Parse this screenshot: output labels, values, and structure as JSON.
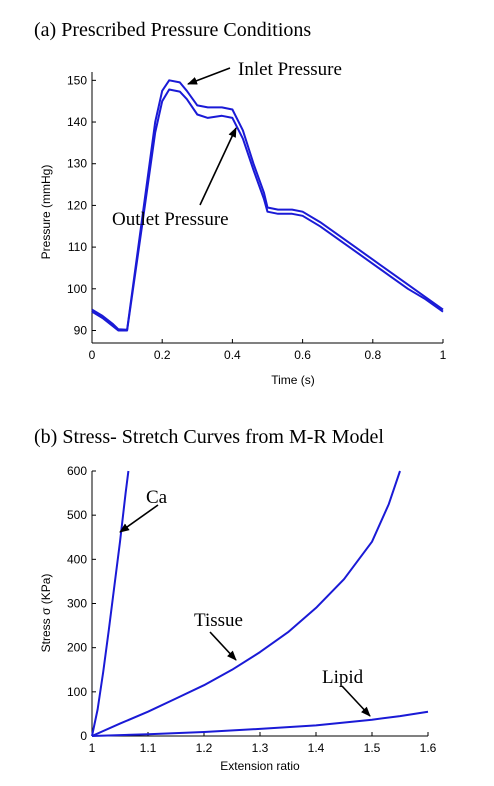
{
  "chart_data": [
    {
      "type": "line",
      "title": "(a) Prescribed Pressure Conditions",
      "xlabel": "Time (s)",
      "ylabel": "Pressure (mmHg)",
      "xlim": [
        0,
        1
      ],
      "ylim": [
        87,
        152
      ],
      "xticks": [
        0,
        0.2,
        0.4,
        0.6,
        0.8,
        1
      ],
      "xtick_labels": [
        "0",
        "0.2",
        "0.4",
        "0.6",
        "0.8",
        "1"
      ],
      "yticks": [
        90,
        100,
        110,
        120,
        130,
        140,
        150
      ],
      "ytick_labels": [
        "90",
        "100",
        "110",
        "120",
        "130",
        "140",
        "150"
      ],
      "grid": false,
      "series": [
        {
          "name": "Inlet Pressure",
          "x": [
            0,
            0.03,
            0.06,
            0.075,
            0.1,
            0.14,
            0.18,
            0.2,
            0.22,
            0.25,
            0.27,
            0.3,
            0.33,
            0.37,
            0.4,
            0.43,
            0.46,
            0.49,
            0.5,
            0.53,
            0.57,
            0.6,
            0.65,
            0.7,
            0.75,
            0.8,
            0.85,
            0.9,
            0.95,
            1.0
          ],
          "y": [
            95,
            93.5,
            91.5,
            90.3,
            90.2,
            115,
            140,
            147.5,
            150,
            149.5,
            147.5,
            144,
            143.5,
            143.5,
            143,
            138,
            130,
            123,
            119.5,
            119,
            119,
            118.5,
            116,
            113,
            110,
            107,
            104,
            101,
            98,
            95
          ]
        },
        {
          "name": "Outlet Pressure",
          "x": [
            0,
            0.03,
            0.06,
            0.075,
            0.1,
            0.14,
            0.18,
            0.2,
            0.22,
            0.25,
            0.27,
            0.3,
            0.33,
            0.37,
            0.4,
            0.43,
            0.46,
            0.49,
            0.5,
            0.53,
            0.57,
            0.6,
            0.65,
            0.7,
            0.75,
            0.8,
            0.85,
            0.9,
            0.95,
            1.0
          ],
          "y": [
            94.5,
            93,
            91,
            90,
            90,
            113.5,
            137.5,
            145,
            147.8,
            147.3,
            145.5,
            141.8,
            141,
            141.5,
            141,
            136,
            128.5,
            121.5,
            118.5,
            118,
            118,
            117.5,
            115,
            112,
            109,
            106,
            103,
            100,
            97.5,
            94.5
          ]
        }
      ],
      "annotations": [
        "Inlet Pressure",
        "Outlet Pressure"
      ]
    },
    {
      "type": "line",
      "title": "(b) Stress- Stretch Curves from M-R Model",
      "xlabel": "Extension ratio",
      "ylabel": "Stress σ (KPa)",
      "xlim": [
        1,
        1.6
      ],
      "ylim": [
        0,
        600
      ],
      "xticks": [
        1,
        1.1,
        1.2,
        1.3,
        1.4,
        1.5,
        1.6
      ],
      "xtick_labels": [
        "1",
        "1.1",
        "1.2",
        "1.3",
        "1.4",
        "1.5",
        "1.6"
      ],
      "yticks": [
        0,
        100,
        200,
        300,
        400,
        500,
        600
      ],
      "ytick_labels": [
        "0",
        "100",
        "200",
        "300",
        "400",
        "500",
        "600"
      ],
      "grid": false,
      "series": [
        {
          "name": "Ca",
          "x": [
            1.0,
            1.01,
            1.02,
            1.03,
            1.04,
            1.05,
            1.06,
            1.065
          ],
          "y": [
            0,
            60,
            145,
            240,
            340,
            440,
            550,
            600
          ]
        },
        {
          "name": "Tissue",
          "x": [
            1.0,
            1.05,
            1.1,
            1.15,
            1.2,
            1.25,
            1.3,
            1.35,
            1.4,
            1.45,
            1.5,
            1.53,
            1.55
          ],
          "y": [
            0,
            28,
            55,
            85,
            115,
            150,
            190,
            235,
            290,
            355,
            440,
            525,
            600
          ]
        },
        {
          "name": "Lipid",
          "x": [
            1.0,
            1.1,
            1.2,
            1.3,
            1.4,
            1.5,
            1.55,
            1.6
          ],
          "y": [
            0,
            4,
            9,
            16,
            24,
            37,
            45,
            55
          ]
        }
      ],
      "annotations": [
        "Ca",
        "Tissue",
        "Lipid"
      ]
    }
  ]
}
